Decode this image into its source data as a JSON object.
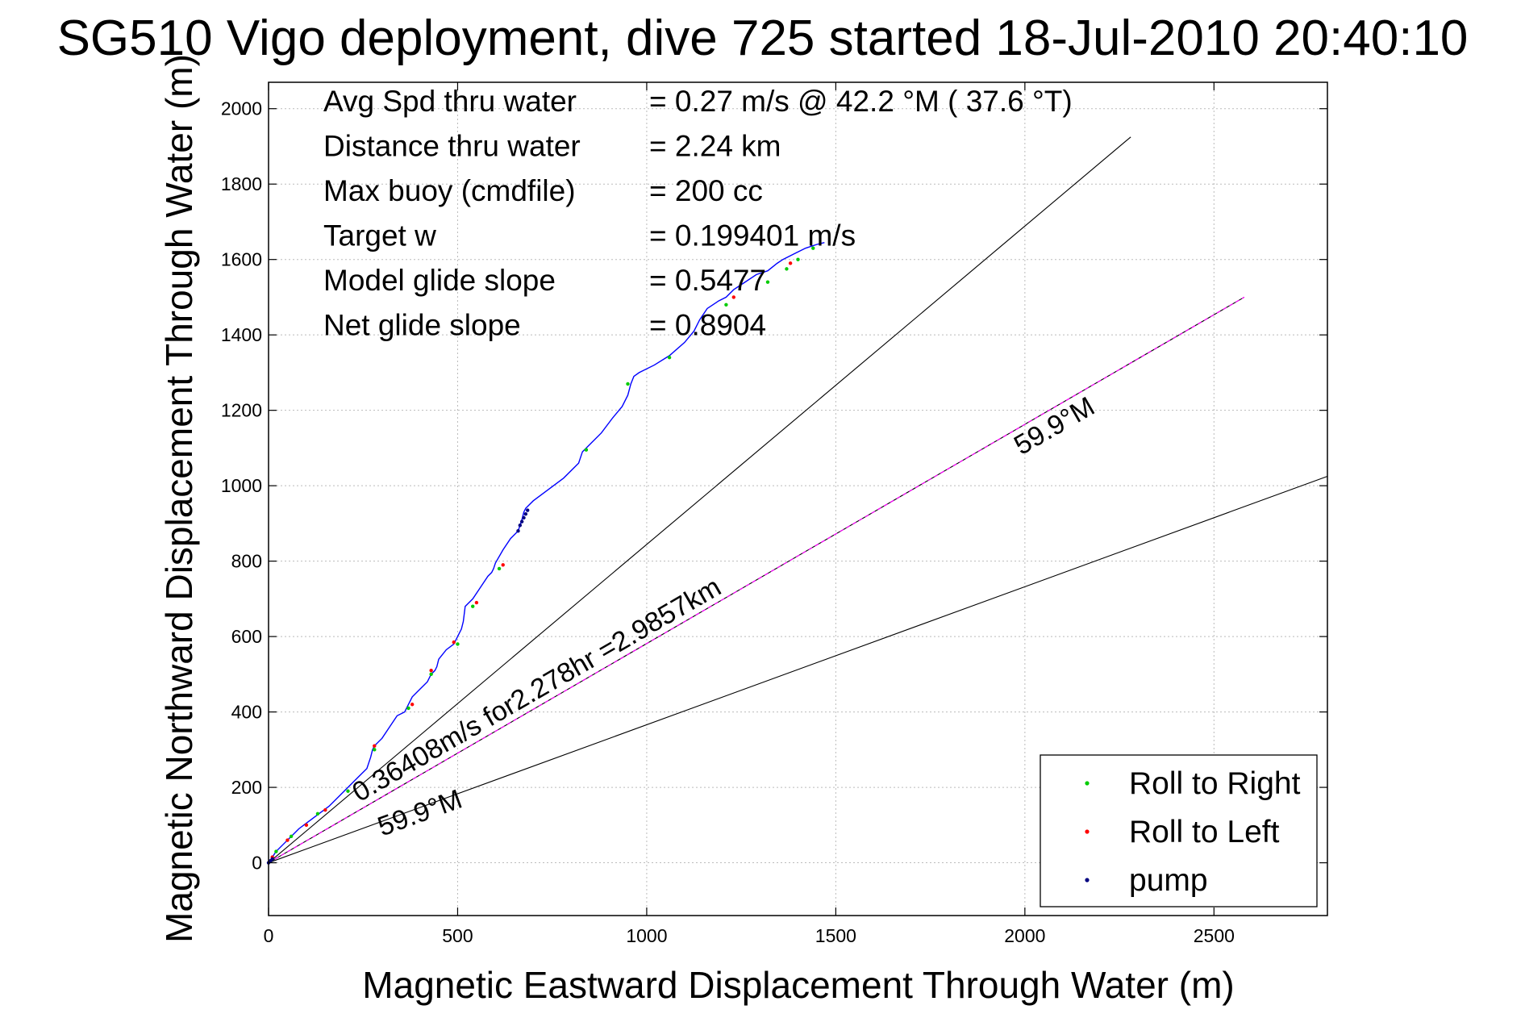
{
  "title": "SG510 Vigo deployment, dive 725 started 18-Jul-2010 20:40:10",
  "chart_data": {
    "type": "line",
    "xlabel": "Magnetic Eastward Displacement Through Water (m)",
    "ylabel": "Magnetic Northward Displacement Through Water (m)",
    "xlim": [
      0,
      2800
    ],
    "ylim": [
      -140,
      2070
    ],
    "xticks": [
      0,
      500,
      1000,
      1500,
      2000,
      2500
    ],
    "yticks": [
      0,
      200,
      400,
      600,
      800,
      1000,
      1200,
      1400,
      1600,
      1800,
      2000
    ],
    "grid": true,
    "legend_position": "bottom-right",
    "info": [
      {
        "label": "Avg Spd thru water",
        "value": "=  0.27 m/s @  42.2 °M ( 37.6 °T)"
      },
      {
        "label": "Distance thru water",
        "value": "=  2.24 km"
      },
      {
        "label": "Max buoy (cmdfile)",
        "value": "= 200 cc"
      },
      {
        "label": "Target w",
        "value": "= 0.199401 m/s"
      },
      {
        "label": "Model glide slope",
        "value": "= 0.5477"
      },
      {
        "label": "Net glide slope",
        "value": "= 0.8904"
      }
    ],
    "annotations": [
      {
        "text": "59.9°M",
        "at": [
          1990,
          1080
        ],
        "angle_deg": 30
      },
      {
        "text": "0.36408m/s for2.278hr =2.9857km",
        "at": [
          240,
          160
        ],
        "angle_deg": 30
      },
      {
        "text": "59.9°M",
        "at": [
          300,
          70
        ],
        "angle_deg": 20
      }
    ],
    "reference_lines": [
      {
        "name": "upper-bound",
        "color": "#000000",
        "x": [
          0,
          2280
        ],
        "y": [
          0,
          1925
        ]
      },
      {
        "name": "course",
        "color": "#000000",
        "x": [
          0,
          2580
        ],
        "y": [
          0,
          1500
        ]
      },
      {
        "name": "course-overlay",
        "color": "#ff00ff",
        "x": [
          0,
          2580
        ],
        "y": [
          0,
          1500
        ]
      },
      {
        "name": "lower-bound",
        "color": "#000000",
        "x": [
          0,
          2800
        ],
        "y": [
          0,
          1025
        ]
      }
    ],
    "series": [
      {
        "name": "track",
        "color": "#0000ff",
        "x": [
          0,
          10,
          20,
          40,
          60,
          80,
          100,
          120,
          140,
          160,
          180,
          200,
          220,
          240,
          260,
          270,
          275,
          280,
          300,
          320,
          340,
          360,
          370,
          375,
          380,
          400,
          420,
          430,
          440,
          445,
          450,
          470,
          490,
          500,
          510,
          515,
          520,
          540,
          560,
          580,
          590,
          595,
          600,
          620,
          640,
          660,
          670,
          675,
          680,
          700,
          740,
          780,
          820,
          830,
          850,
          880,
          910,
          935,
          950,
          958,
          962,
          966,
          980,
          1020,
          1060,
          1100,
          1125,
          1140,
          1160,
          1190,
          1210,
          1230,
          1260,
          1290,
          1320,
          1345,
          1360,
          1390,
          1420,
          1450,
          1470
        ],
        "y": [
          0,
          15,
          30,
          50,
          70,
          90,
          105,
          120,
          135,
          150,
          170,
          190,
          210,
          230,
          250,
          280,
          300,
          310,
          330,
          360,
          390,
          400,
          420,
          430,
          440,
          460,
          480,
          500,
          510,
          520,
          540,
          565,
          580,
          600,
          620,
          640,
          680,
          700,
          730,
          760,
          770,
          780,
          795,
          830,
          860,
          880,
          910,
          930,
          940,
          960,
          990,
          1020,
          1060,
          1090,
          1110,
          1140,
          1180,
          1210,
          1240,
          1270,
          1280,
          1290,
          1300,
          1320,
          1345,
          1380,
          1410,
          1440,
          1470,
          1490,
          1500,
          1520,
          1540,
          1560,
          1570,
          1590,
          1600,
          1615,
          1630,
          1640,
          1645
        ]
      }
    ],
    "markers": [
      {
        "name": "Roll to Right",
        "color": "#00cc00",
        "x": [
          20,
          60,
          130,
          210,
          280,
          370,
          430,
          500,
          540,
          610,
          840,
          950,
          1060,
          1210,
          1320,
          1370,
          1400,
          1440
        ],
        "y": [
          30,
          70,
          130,
          190,
          300,
          410,
          500,
          580,
          680,
          780,
          1095,
          1270,
          1340,
          1480,
          1540,
          1575,
          1600,
          1630
        ]
      },
      {
        "name": "Roll to Left",
        "color": "#ff0000",
        "x": [
          10,
          50,
          100,
          150,
          280,
          380,
          430,
          490,
          550,
          620,
          1230,
          1380
        ],
        "y": [
          15,
          60,
          100,
          140,
          310,
          420,
          510,
          585,
          690,
          790,
          1500,
          1590
        ]
      },
      {
        "name": "pump",
        "color": "#000080",
        "x": [
          0,
          5,
          10,
          660,
          665,
          670,
          675,
          680,
          685
        ],
        "y": [
          0,
          5,
          10,
          880,
          895,
          905,
          915,
          925,
          935
        ]
      }
    ]
  }
}
